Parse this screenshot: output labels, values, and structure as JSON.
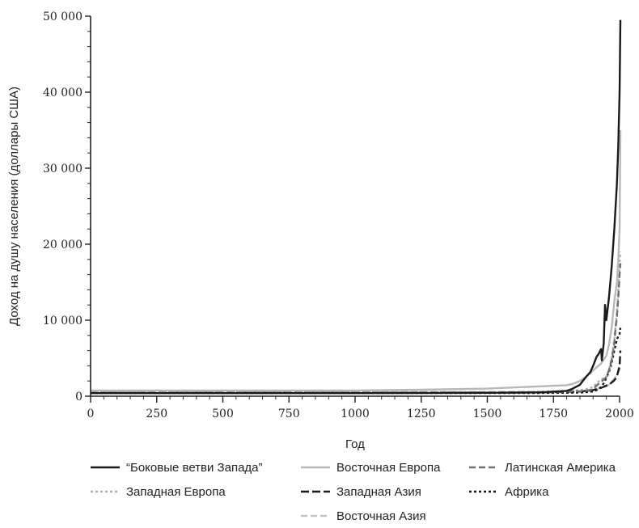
{
  "chart_data": {
    "type": "line",
    "xlabel": "Год",
    "ylabel": "Доход на душу населения (доллары США)",
    "xlim": [
      0,
      2000
    ],
    "ylim": [
      0,
      50000
    ],
    "x_ticks": [
      0,
      250,
      500,
      750,
      1000,
      1250,
      1500,
      1750,
      2000
    ],
    "x_tick_labels": [
      "0",
      "250",
      "500",
      "750",
      "1000",
      "1250",
      "1500",
      "1750",
      "2000"
    ],
    "y_ticks": [
      0,
      10000,
      20000,
      30000,
      40000,
      50000
    ],
    "y_tick_labels": [
      "0",
      "10 000",
      "20 000",
      "30 000",
      "40 000",
      "50 000"
    ],
    "legend_position": "bottom",
    "series": [
      {
        "name": "“Боковые ветви Запада”",
        "color": "#1a1a1a",
        "dash": "solid",
        "points": [
          [
            0,
            400
          ],
          [
            1000,
            400
          ],
          [
            1500,
            450
          ],
          [
            1600,
            470
          ],
          [
            1700,
            500
          ],
          [
            1800,
            700
          ],
          [
            1820,
            950
          ],
          [
            1850,
            1500
          ],
          [
            1870,
            2400
          ],
          [
            1890,
            3200
          ],
          [
            1900,
            4000
          ],
          [
            1913,
            5200
          ],
          [
            1920,
            5500
          ],
          [
            1930,
            6200
          ],
          [
            1933,
            4700
          ],
          [
            1940,
            7000
          ],
          [
            1945,
            12000
          ],
          [
            1950,
            10000
          ],
          [
            1960,
            13000
          ],
          [
            1970,
            17000
          ],
          [
            1980,
            22000
          ],
          [
            1990,
            28000
          ],
          [
            1995,
            33000
          ],
          [
            2000,
            40000
          ],
          [
            2003,
            49500
          ]
        ]
      },
      {
        "name": "Восточная Европа",
        "color": "#b8b8b8",
        "dash": "solid",
        "points": [
          [
            0,
            750
          ],
          [
            500,
            740
          ],
          [
            1000,
            760
          ],
          [
            1250,
            850
          ],
          [
            1500,
            1000
          ],
          [
            1600,
            1150
          ],
          [
            1700,
            1300
          ],
          [
            1800,
            1450
          ],
          [
            1820,
            1600
          ],
          [
            1850,
            2000
          ],
          [
            1870,
            2500
          ],
          [
            1890,
            3000
          ],
          [
            1900,
            3400
          ],
          [
            1913,
            3800
          ],
          [
            1930,
            4300
          ],
          [
            1940,
            4800
          ],
          [
            1950,
            5300
          ],
          [
            1960,
            6800
          ],
          [
            1970,
            9000
          ],
          [
            1980,
            12500
          ],
          [
            1990,
            15000
          ],
          [
            1995,
            18000
          ],
          [
            2000,
            22000
          ],
          [
            2003,
            35000
          ]
        ]
      },
      {
        "name": "Латинская Америка",
        "color": "#707070",
        "dash": "8,4",
        "points": [
          [
            0,
            450
          ],
          [
            1500,
            460
          ],
          [
            1600,
            470
          ],
          [
            1700,
            520
          ],
          [
            1800,
            620
          ],
          [
            1850,
            650
          ],
          [
            1870,
            700
          ],
          [
            1900,
            900
          ],
          [
            1913,
            1400
          ],
          [
            1930,
            1900
          ],
          [
            1940,
            2200
          ],
          [
            1950,
            2500
          ],
          [
            1960,
            3400
          ],
          [
            1970,
            4800
          ],
          [
            1980,
            7000
          ],
          [
            1985,
            9000
          ],
          [
            1990,
            10500
          ],
          [
            1995,
            13000
          ],
          [
            2000,
            16000
          ],
          [
            2003,
            17500
          ]
        ]
      },
      {
        "name": "Западная Европа",
        "color": "#b0b0b0",
        "dash": "3,3",
        "points": [
          [
            0,
            500
          ],
          [
            1500,
            520
          ],
          [
            1600,
            550
          ],
          [
            1700,
            600
          ],
          [
            1800,
            700
          ],
          [
            1850,
            800
          ],
          [
            1870,
            900
          ],
          [
            1900,
            1200
          ],
          [
            1913,
            1700
          ],
          [
            1930,
            2200
          ],
          [
            1950,
            2600
          ],
          [
            1960,
            3500
          ],
          [
            1970,
            5000
          ],
          [
            1980,
            7500
          ],
          [
            1990,
            11000
          ],
          [
            1995,
            14000
          ],
          [
            2000,
            17500
          ],
          [
            2003,
            19000
          ]
        ]
      },
      {
        "name": "Западная Азия",
        "color": "#1a1a1a",
        "dash": "10,4",
        "points": [
          [
            0,
            450
          ],
          [
            1500,
            470
          ],
          [
            1700,
            500
          ],
          [
            1800,
            560
          ],
          [
            1850,
            620
          ],
          [
            1870,
            680
          ],
          [
            1900,
            800
          ],
          [
            1913,
            950
          ],
          [
            1930,
            1100
          ],
          [
            1940,
            1250
          ],
          [
            1950,
            1400
          ],
          [
            1960,
            1500
          ],
          [
            1970,
            1800
          ],
          [
            1980,
            2100
          ],
          [
            1990,
            2600
          ],
          [
            2000,
            4000
          ],
          [
            2003,
            6000
          ]
        ]
      },
      {
        "name": "Африка",
        "color": "#1a1a1a",
        "dash": "3,3",
        "points": [
          [
            0,
            420
          ],
          [
            1500,
            420
          ],
          [
            1700,
            430
          ],
          [
            1800,
            450
          ],
          [
            1850,
            480
          ],
          [
            1870,
            520
          ],
          [
            1900,
            620
          ],
          [
            1913,
            800
          ],
          [
            1930,
            1200
          ],
          [
            1940,
            1700
          ],
          [
            1950,
            2400
          ],
          [
            1960,
            3200
          ],
          [
            1970,
            4400
          ],
          [
            1980,
            6000
          ],
          [
            1990,
            7500
          ],
          [
            2000,
            8200
          ],
          [
            2003,
            9000
          ]
        ]
      },
      {
        "name": "Восточная Азия",
        "color": "#c4c4c4",
        "dash": "8,4",
        "points": [
          [
            0,
            550
          ],
          [
            1500,
            560
          ],
          [
            1700,
            570
          ],
          [
            1800,
            600
          ],
          [
            1850,
            620
          ],
          [
            1900,
            700
          ],
          [
            1913,
            900
          ],
          [
            1930,
            1100
          ],
          [
            1950,
            1300
          ],
          [
            1960,
            1500
          ],
          [
            1970,
            1900
          ],
          [
            1980,
            2300
          ],
          [
            1990,
            2800
          ],
          [
            2000,
            3500
          ],
          [
            2003,
            4000
          ]
        ]
      }
    ]
  }
}
